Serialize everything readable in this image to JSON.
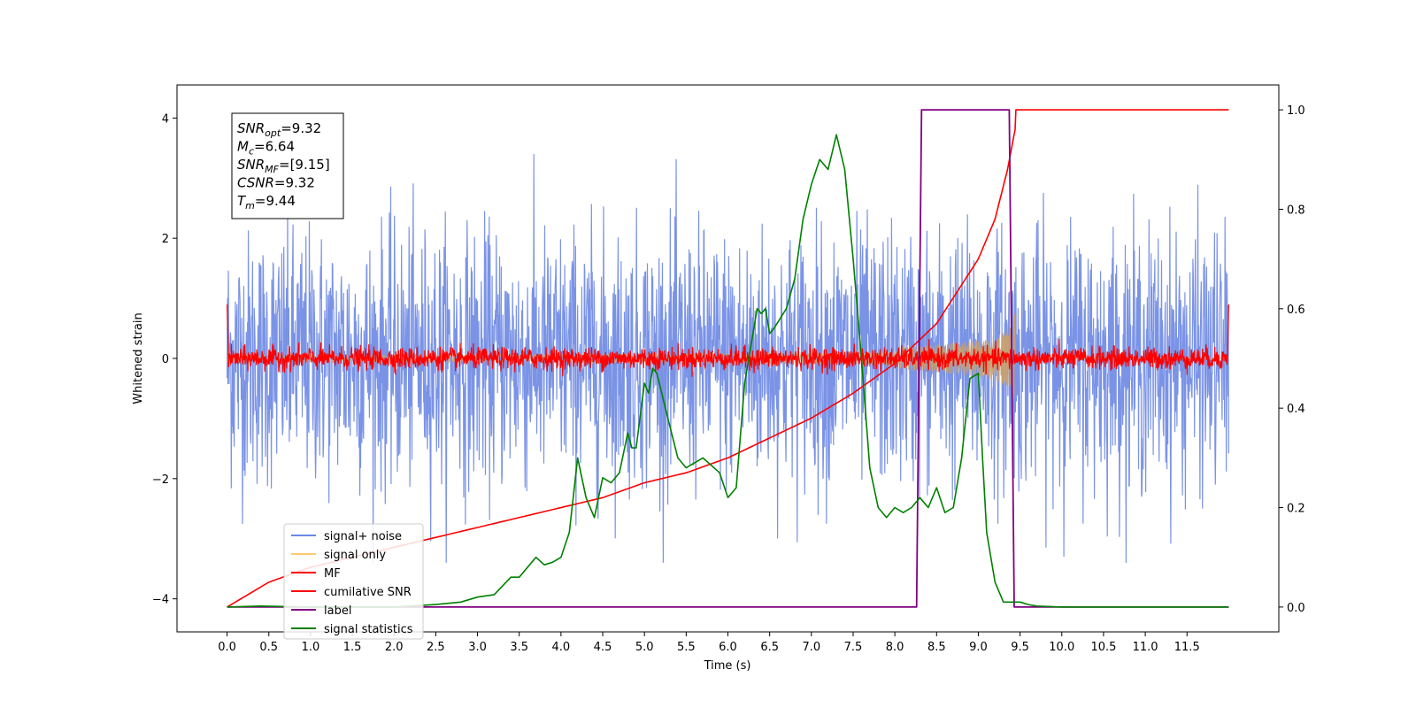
{
  "chart_data": {
    "type": "line",
    "xlabel": "Time (s)",
    "ylabel": "Whitened strain",
    "xlim": [
      -0.6,
      12.6
    ],
    "ylim": [
      -4.55,
      4.55
    ],
    "y2lim": [
      -0.05,
      1.05
    ],
    "x_ticks": [
      "0.0",
      "0.5",
      "1.0",
      "1.5",
      "2.0",
      "2.5",
      "3.0",
      "3.5",
      "4.0",
      "4.5",
      "5.0",
      "5.5",
      "6.0",
      "6.5",
      "7.0",
      "7.5",
      "8.0",
      "8.5",
      "9.0",
      "9.5",
      "10.0",
      "10.5",
      "11.0",
      "11.5"
    ],
    "y_ticks": [
      "4",
      "2",
      "0",
      "−2",
      "−4"
    ],
    "y2_ticks": [
      "1.0",
      "0.8",
      "0.6",
      "0.4",
      "0.2",
      "0.0"
    ],
    "grid": false,
    "legend_position": "lower-left",
    "annotation": {
      "lines": [
        {
          "sym": "SNR",
          "sub": "opt",
          "value": "=9.32"
        },
        {
          "sym": "M",
          "sub": "c",
          "value": "=6.64"
        },
        {
          "sym": "SNR",
          "sub": "MF",
          "value": "=[9.15]"
        },
        {
          "sym": "CSNR",
          "sub": "",
          "value": "=9.32"
        },
        {
          "sym": "T",
          "sub": "m",
          "value": "=9.44"
        }
      ]
    },
    "series": [
      {
        "name": "signal+ noise",
        "color": "#6b87e3",
        "axis": "left",
        "description": "whitened noise with amplitude about 2.5 spanning 0 to 12 s"
      },
      {
        "name": "signal only",
        "color": "#ffc870",
        "axis": "left",
        "chirp_end_time": 9.44
      },
      {
        "name": "MF",
        "color": "#ff0000",
        "axis": "left"
      },
      {
        "name": "cumilative SNR",
        "color": "#ff0000",
        "axis": "right",
        "x": [
          0.0,
          0.5,
          1.0,
          1.5,
          2.0,
          2.5,
          3.0,
          3.5,
          4.0,
          4.5,
          5.0,
          5.5,
          6.0,
          6.5,
          7.0,
          7.5,
          8.0,
          8.5,
          9.0,
          9.2,
          9.35,
          9.44,
          9.45,
          12.0
        ],
        "values": [
          0.0,
          0.05,
          0.08,
          0.1,
          0.12,
          0.14,
          0.16,
          0.18,
          0.2,
          0.22,
          0.25,
          0.27,
          0.3,
          0.34,
          0.38,
          0.43,
          0.49,
          0.57,
          0.7,
          0.78,
          0.88,
          0.96,
          1.0,
          1.0
        ]
      },
      {
        "name": "label",
        "color": "#800080",
        "axis": "right",
        "x": [
          0.0,
          8.26,
          8.32,
          9.37,
          9.43,
          12.0
        ],
        "values": [
          0.0,
          0.0,
          1.0,
          1.0,
          0.0,
          0.0
        ]
      },
      {
        "name": "signal statistics",
        "color": "#008000",
        "axis": "right",
        "x": [
          0.0,
          0.4,
          1.0,
          1.5,
          2.0,
          2.5,
          2.8,
          3.0,
          3.2,
          3.4,
          3.5,
          3.7,
          3.8,
          3.9,
          4.0,
          4.1,
          4.2,
          4.3,
          4.4,
          4.5,
          4.6,
          4.7,
          4.8,
          4.85,
          4.9,
          5.0,
          5.05,
          5.1,
          5.15,
          5.25,
          5.4,
          5.5,
          5.7,
          5.9,
          6.0,
          6.1,
          6.2,
          6.3,
          6.35,
          6.4,
          6.45,
          6.5,
          6.55,
          6.7,
          6.8,
          6.9,
          7.0,
          7.1,
          7.2,
          7.3,
          7.4,
          7.5,
          7.6,
          7.7,
          7.8,
          7.9,
          8.0,
          8.1,
          8.2,
          8.3,
          8.4,
          8.5,
          8.6,
          8.7,
          8.8,
          8.9,
          9.0,
          9.05,
          9.1,
          9.2,
          9.3,
          9.4,
          9.5,
          9.6,
          9.7,
          10.0,
          11.0,
          12.0
        ],
        "values": [
          0.0,
          0.002,
          0.0,
          0.0,
          0.0,
          0.005,
          0.01,
          0.02,
          0.025,
          0.06,
          0.06,
          0.1,
          0.085,
          0.09,
          0.1,
          0.15,
          0.3,
          0.22,
          0.18,
          0.26,
          0.25,
          0.27,
          0.35,
          0.32,
          0.32,
          0.45,
          0.43,
          0.48,
          0.47,
          0.4,
          0.3,
          0.28,
          0.3,
          0.27,
          0.22,
          0.24,
          0.45,
          0.55,
          0.6,
          0.59,
          0.6,
          0.55,
          0.56,
          0.6,
          0.66,
          0.78,
          0.85,
          0.9,
          0.88,
          0.95,
          0.88,
          0.7,
          0.5,
          0.28,
          0.2,
          0.18,
          0.2,
          0.19,
          0.2,
          0.22,
          0.2,
          0.24,
          0.19,
          0.2,
          0.3,
          0.46,
          0.47,
          0.3,
          0.15,
          0.05,
          0.01,
          0.01,
          0.01,
          0.005,
          0.002,
          0.0,
          0.0,
          0.0
        ]
      }
    ]
  }
}
